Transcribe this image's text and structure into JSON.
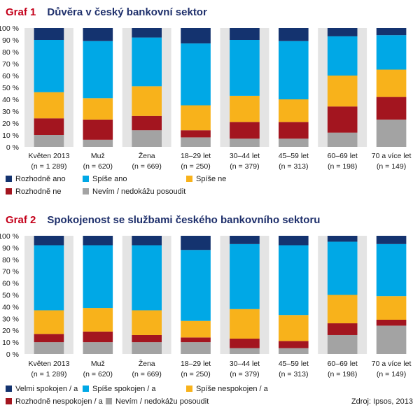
{
  "colors": {
    "s1": "#14336f",
    "s2": "#00a8e6",
    "s3": "#f8b21b",
    "s4": "#a3151f",
    "s5": "#a3a3a3",
    "stripe": "#e4e4e4",
    "title_num": "#c4001a",
    "title_text": "#1e2f6b"
  },
  "source": "Zdroj: Ipsos, 2013",
  "chart_data": [
    {
      "type": "bar",
      "stacked": true,
      "number": "Graf 1",
      "title": "Důvěra v český bankovní sektor",
      "ylim": [
        0,
        100
      ],
      "yticks": [
        "0 %",
        "10 %",
        "20 %",
        "30 %",
        "40 %",
        "50 %",
        "60 %",
        "70 %",
        "80 %",
        "90 %",
        "100 %"
      ],
      "categories": [
        "Květen 2013",
        "Muž",
        "Žena",
        "18–29 let",
        "30–44 let",
        "45–59 let",
        "60–69 let",
        "70 a více let"
      ],
      "sublabels": [
        "(n = 1 289)",
        "(n = 620)",
        "(n = 669)",
        "(n = 250)",
        "(n = 379)",
        "(n = 313)",
        "(n = 198)",
        "(n = 149)"
      ],
      "series": [
        {
          "name": "Nevím / nedokážu posoudit",
          "color_key": "s5",
          "values": [
            10,
            6,
            14,
            8,
            7,
            7,
            12,
            23
          ]
        },
        {
          "name": "Rozhodně ne",
          "color_key": "s4",
          "values": [
            14,
            17,
            12,
            6,
            14,
            14,
            22,
            19
          ]
        },
        {
          "name": "Spíše ne",
          "color_key": "s3",
          "values": [
            22,
            18,
            25,
            21,
            22,
            19,
            26,
            23
          ]
        },
        {
          "name": "Spíše ano",
          "color_key": "s2",
          "values": [
            44,
            48,
            41,
            52,
            47,
            49,
            33,
            29
          ]
        },
        {
          "name": "Rozhodně ano",
          "color_key": "s1",
          "values": [
            10,
            11,
            8,
            13,
            10,
            11,
            7,
            6
          ]
        }
      ],
      "legend": [
        {
          "name": "Rozhodně ano",
          "color_key": "s1"
        },
        {
          "name": "Spíše ano",
          "color_key": "s2"
        },
        {
          "name": "Spíše ne",
          "color_key": "s3"
        },
        {
          "name": "Rozhodně ne",
          "color_key": "s4"
        },
        {
          "name": "Nevím / nedokážu posoudit",
          "color_key": "s5"
        }
      ]
    },
    {
      "type": "bar",
      "stacked": true,
      "number": "Graf 2",
      "title": "Spokojenost se službami českého bankovního sektoru",
      "ylim": [
        0,
        100
      ],
      "yticks": [
        "0 %",
        "10 %",
        "20 %",
        "30 %",
        "40 %",
        "50 %",
        "60 %",
        "70 %",
        "80 %",
        "90 %",
        "100 %"
      ],
      "categories": [
        "Květen 2013",
        "Muž",
        "Žena",
        "18–29 let",
        "30–44 let",
        "45–59 let",
        "60–69 let",
        "70 a více let"
      ],
      "sublabels": [
        "(n = 1 289)",
        "(n = 620)",
        "(n = 669)",
        "(n = 250)",
        "(n = 379)",
        "(n = 313)",
        "(n = 198)",
        "(n = 149)"
      ],
      "series": [
        {
          "name": "Nevím / nedokážu posoudit",
          "color_key": "s5",
          "values": [
            10,
            10,
            10,
            10,
            5,
            5,
            16,
            24
          ]
        },
        {
          "name": "Rozhodně nespokojen / a",
          "color_key": "s4",
          "values": [
            7,
            9,
            6,
            4,
            8,
            6,
            10,
            5
          ]
        },
        {
          "name": "Spíše nespokojen / a",
          "color_key": "s3",
          "values": [
            20,
            20,
            21,
            14,
            25,
            22,
            24,
            20
          ]
        },
        {
          "name": "Spíše spokojen / a",
          "color_key": "s2",
          "values": [
            55,
            53,
            55,
            60,
            55,
            59,
            45,
            44
          ]
        },
        {
          "name": "Velmi spokojen / a",
          "color_key": "s1",
          "values": [
            8,
            8,
            8,
            12,
            7,
            8,
            5,
            7
          ]
        }
      ],
      "legend": [
        {
          "name": "Velmi spokojen / a",
          "color_key": "s1"
        },
        {
          "name": "Spíše spokojen / a",
          "color_key": "s2"
        },
        {
          "name": "Spíše nespokojen / a",
          "color_key": "s3"
        },
        {
          "name": "Rozhodně nespokojen / a",
          "color_key": "s4"
        },
        {
          "name": "Nevím / nedokážu posoudit",
          "color_key": "s5"
        }
      ]
    }
  ]
}
